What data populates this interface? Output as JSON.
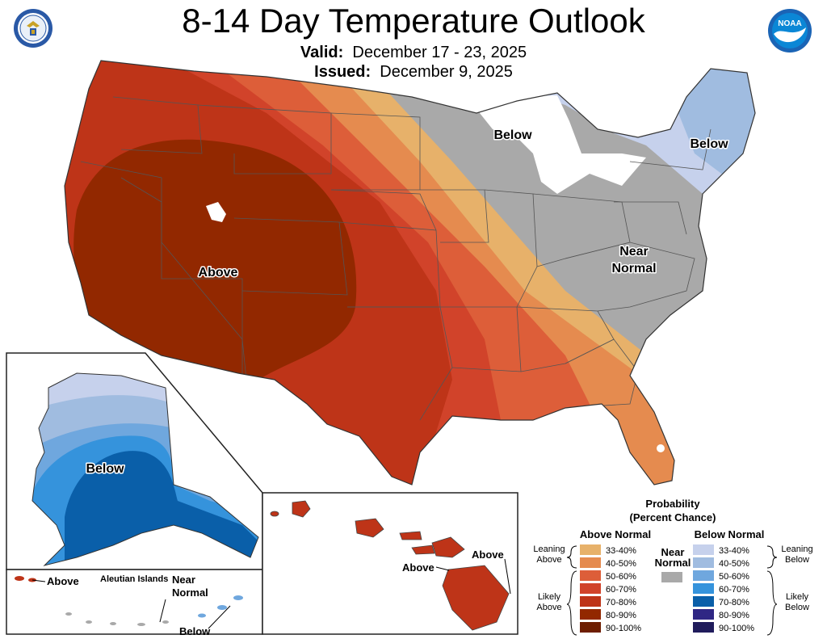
{
  "header": {
    "title": "8-14 Day Temperature Outlook",
    "valid_label": "Valid:",
    "valid_value": "December 17 - 23, 2025",
    "issued_label": "Issued:",
    "issued_value": "December 9, 2025"
  },
  "logos": {
    "left": "department-of-commerce-seal-icon",
    "right": "noaa-logo-icon",
    "noaa_text": "NOAA"
  },
  "colors": {
    "above_33_40": "#E7B16A",
    "above_40_50": "#E58B4F",
    "above_50_60": "#DD5E39",
    "above_60_70": "#D1432A",
    "above_70_80": "#BE3418",
    "above_80_90": "#922800",
    "above_90_100": "#6E1E00",
    "near_normal": "#A9A9A9",
    "below_33_40": "#C6D1EC",
    "below_40_50": "#A0BCE0",
    "below_50_60": "#6FA7DE",
    "below_60_70": "#3593DC",
    "below_70_80": "#0A5FA9",
    "below_80_90": "#2F2784",
    "below_90_100": "#201C5C"
  },
  "map_labels": {
    "conus_above": "Above",
    "great_lakes_below": "Below",
    "northeast_below": "Below",
    "ohio_valley_near_1": "Near",
    "ohio_valley_near_2": "Normal",
    "alaska_below": "Below",
    "aleutian_above": "Above",
    "aleutian_islands": "Aleutian Islands",
    "aleutian_near_1": "Near",
    "aleutian_near_2": "Normal",
    "aleutian_below": "Below",
    "hawaii_above_1": "Above",
    "hawaii_above_2": "Above"
  },
  "legend": {
    "title_1": "Probability",
    "title_2": "(Percent Chance)",
    "above_header": "Above Normal",
    "below_header": "Below Normal",
    "near_1": "Near",
    "near_2": "Normal",
    "leaning_above_1": "Leaning",
    "leaning_above_2": "Above",
    "likely_above_1": "Likely",
    "likely_above_2": "Above",
    "leaning_below_1": "Leaning",
    "leaning_below_2": "Below",
    "likely_below_1": "Likely",
    "likely_below_2": "Below",
    "categories": [
      "33-40%",
      "40-50%",
      "50-60%",
      "60-70%",
      "70-80%",
      "80-90%",
      "90-100%"
    ]
  }
}
